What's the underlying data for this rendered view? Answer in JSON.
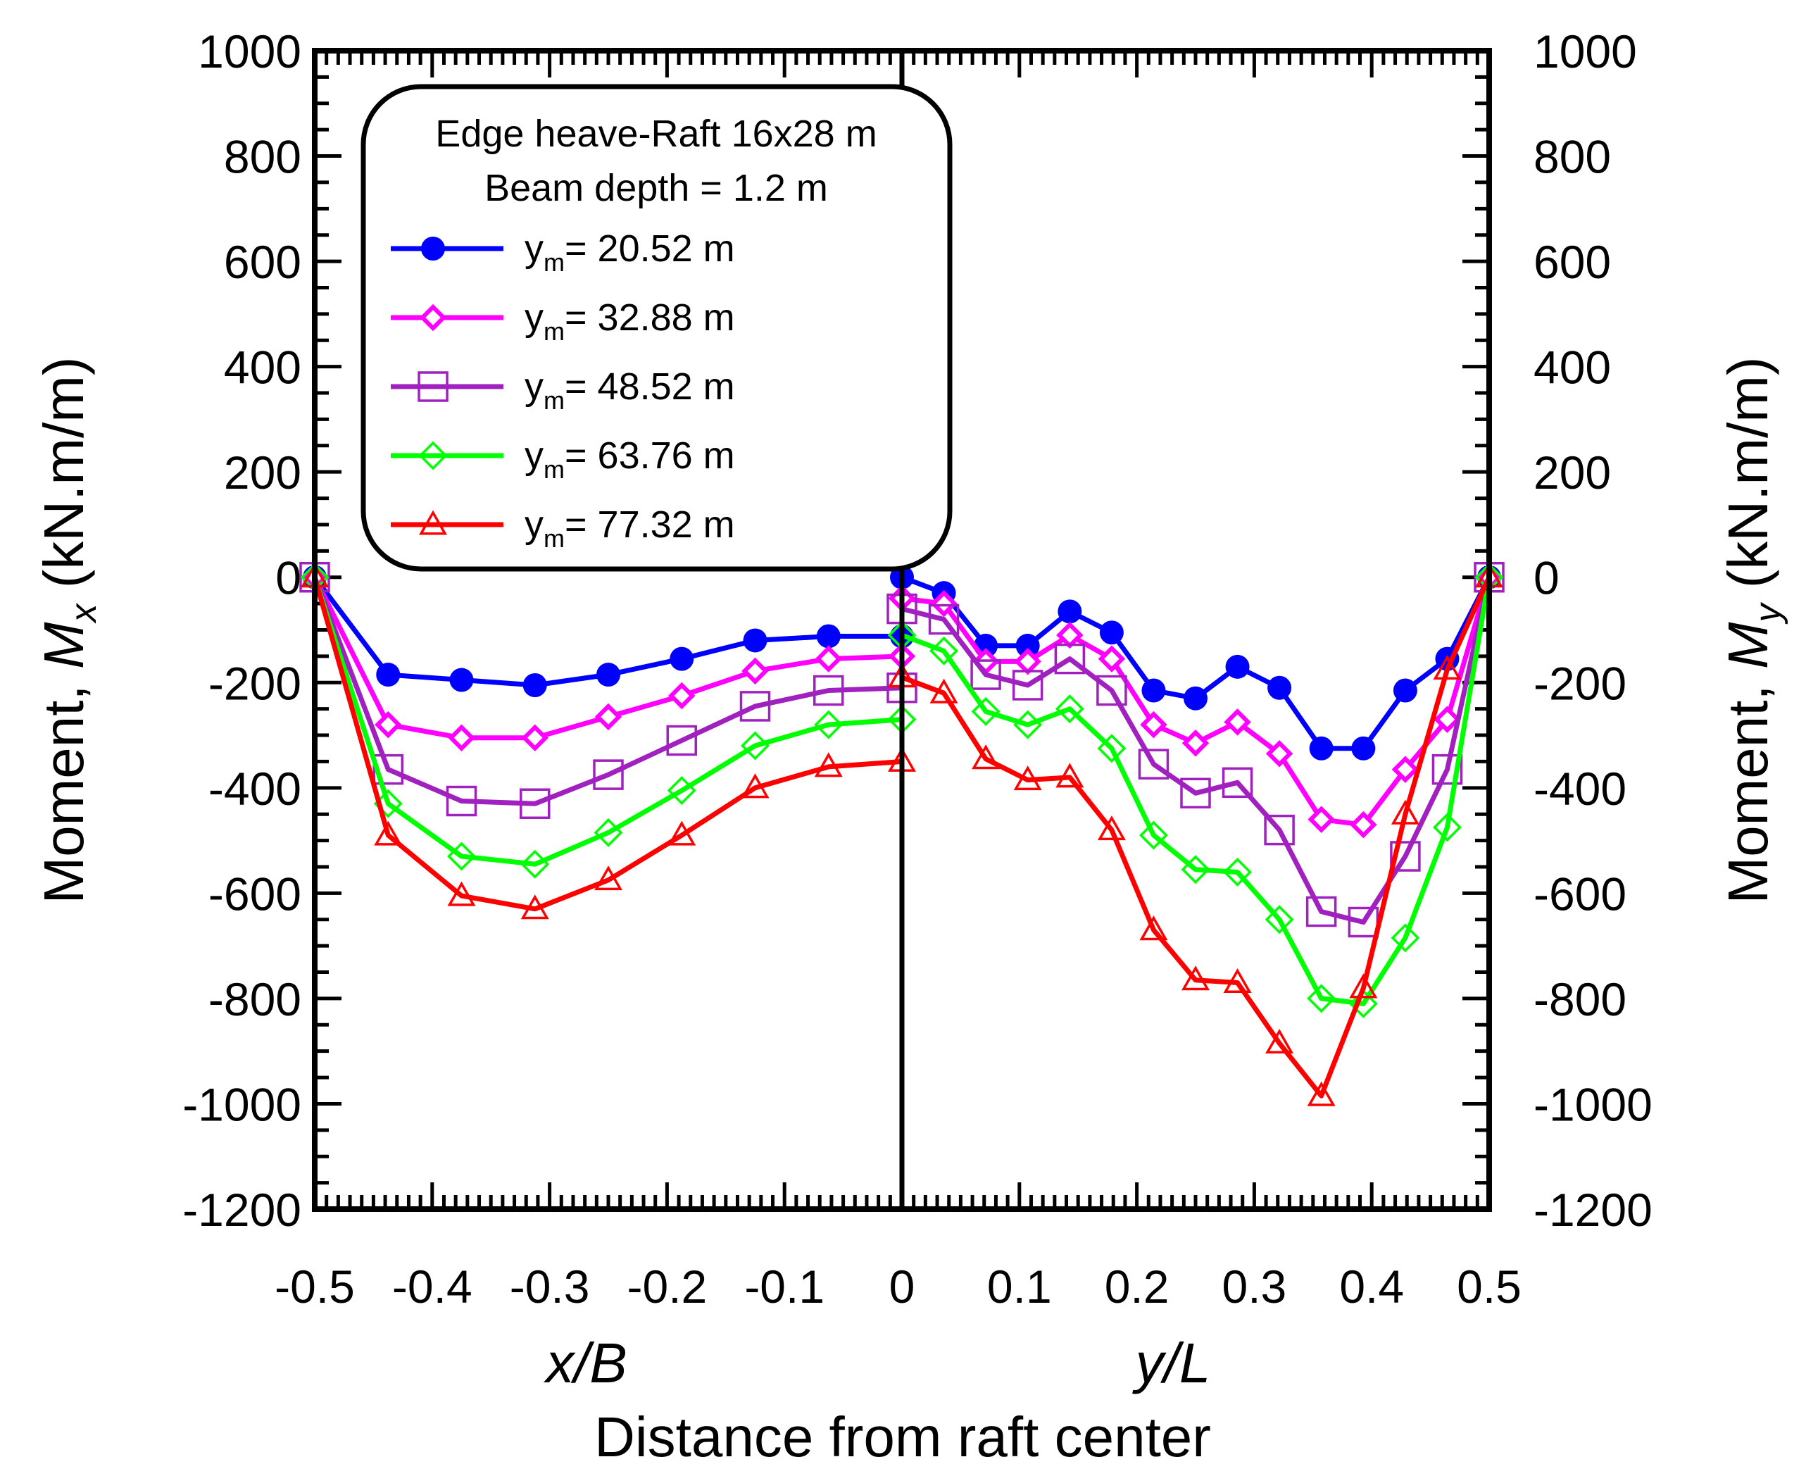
{
  "chart_data": {
    "type": "line",
    "title_lines": [
      "Edge heave-Raft 16x28 m",
      "Beam depth = 1.2 m"
    ],
    "xlabel": "Distance from raft center",
    "xlabel_left_sub": "x/B",
    "xlabel_right_sub": "y/L",
    "ylabel_left": {
      "prefix": "Moment, ",
      "symbol": "M",
      "subscript": "x",
      "unit": " (kN.m/m)"
    },
    "ylabel_right": {
      "prefix": "Moment, ",
      "symbol": "M",
      "subscript": "y",
      "unit": " (kN.m/m)"
    },
    "ylim": [
      -1200,
      1000
    ],
    "yticks": [
      1000,
      800,
      600,
      400,
      200,
      0,
      -200,
      -400,
      -600,
      -800,
      -1000,
      -1200
    ],
    "xticks_left": [
      -0.5,
      -0.4,
      -0.3,
      -0.2,
      -0.1,
      0
    ],
    "xticks_right": [
      0.1,
      0.2,
      0.3,
      0.4,
      0.5
    ],
    "xtick_labels_left": [
      "-0.5",
      "-0.4",
      "-0.3",
      "-0.2",
      "-0.1",
      "0"
    ],
    "xtick_labels_right": [
      "0.1",
      "0.2",
      "0.3",
      "0.4",
      "0.5"
    ],
    "grid": false,
    "legend_position": "top-left",
    "divider_at": 0,
    "series": [
      {
        "name": "y<sub>m</sub>= 20.52 m",
        "label_main": "y",
        "label_sub": "m",
        "label_value": "= 20.52 m",
        "color": "#0000ff",
        "marker": "filled-circle",
        "left_x": [
          -0.5,
          -0.4375,
          -0.375,
          -0.3125,
          -0.25,
          -0.1875,
          -0.125,
          -0.0625,
          0
        ],
        "left_y": [
          0,
          -185,
          -195,
          -205,
          -185,
          -155,
          -120,
          -112,
          -112
        ],
        "right_x": [
          0,
          0.0357,
          0.0714,
          0.1071,
          0.1429,
          0.1786,
          0.2143,
          0.25,
          0.2857,
          0.3214,
          0.3571,
          0.3929,
          0.4286,
          0.4643,
          0.5
        ],
        "right_y": [
          0,
          -30,
          -130,
          -130,
          -65,
          -105,
          -215,
          -230,
          -170,
          -210,
          -325,
          -325,
          -215,
          -155,
          0
        ]
      },
      {
        "name": "y<sub>m</sub>= 32.88 m",
        "label_main": "y",
        "label_sub": "m",
        "label_value": "= 32.88 m",
        "color": "#ff00ff",
        "marker": "diamond",
        "left_x": [
          -0.5,
          -0.4375,
          -0.375,
          -0.3125,
          -0.25,
          -0.1875,
          -0.125,
          -0.0625,
          0
        ],
        "left_y": [
          0,
          -280,
          -305,
          -305,
          -265,
          -225,
          -178,
          -155,
          -150
        ],
        "right_x": [
          0,
          0.0357,
          0.0714,
          0.1071,
          0.1429,
          0.1786,
          0.2143,
          0.25,
          0.2857,
          0.3214,
          0.3571,
          0.3929,
          0.4286,
          0.4643,
          0.5
        ],
        "right_y": [
          -40,
          -50,
          -160,
          -160,
          -110,
          -155,
          -280,
          -315,
          -275,
          -335,
          -460,
          -470,
          -365,
          -270,
          0
        ]
      },
      {
        "name": "y<sub>m</sub>= 48.52 m",
        "label_main": "y",
        "label_sub": "m",
        "label_value": "= 48.52 m",
        "color": "#a020c0",
        "marker": "open-square",
        "left_x": [
          -0.5,
          -0.4375,
          -0.375,
          -0.3125,
          -0.25,
          -0.1875,
          -0.125,
          -0.0625,
          0
        ],
        "left_y": [
          0,
          -365,
          -425,
          -430,
          -375,
          -310,
          -245,
          -215,
          -210
        ],
        "right_x": [
          0,
          0.0357,
          0.0714,
          0.1071,
          0.1429,
          0.1786,
          0.2143,
          0.25,
          0.2857,
          0.3214,
          0.3571,
          0.3929,
          0.4286,
          0.4643,
          0.5
        ],
        "right_y": [
          -60,
          -80,
          -185,
          -205,
          -155,
          -215,
          -355,
          -410,
          -390,
          -480,
          -635,
          -655,
          -530,
          -365,
          0
        ]
      },
      {
        "name": "y<sub>m</sub>= 63.76 m",
        "label_main": "y",
        "label_sub": "m",
        "label_value": "= 63.76 m",
        "color": "#00ff00",
        "marker": "open-diamond",
        "left_x": [
          -0.5,
          -0.4375,
          -0.375,
          -0.3125,
          -0.25,
          -0.1875,
          -0.125,
          -0.0625,
          0
        ],
        "left_y": [
          0,
          -430,
          -530,
          -545,
          -485,
          -405,
          -320,
          -280,
          -270
        ],
        "right_x": [
          0,
          0.0357,
          0.0714,
          0.1071,
          0.1429,
          0.1786,
          0.2143,
          0.25,
          0.2857,
          0.3214,
          0.3571,
          0.3929,
          0.4286,
          0.4643,
          0.5
        ],
        "right_y": [
          -110,
          -140,
          -255,
          -280,
          -250,
          -325,
          -490,
          -555,
          -560,
          -650,
          -800,
          -810,
          -685,
          -475,
          0
        ]
      },
      {
        "name": "y<sub>m</sub>= 77.32 m",
        "label_main": "y",
        "label_sub": "m",
        "label_value": "= 77.32 m",
        "color": "#ff0000",
        "marker": "open-triangle",
        "left_x": [
          -0.5,
          -0.4375,
          -0.375,
          -0.3125,
          -0.25,
          -0.1875,
          -0.125,
          -0.0625,
          0
        ],
        "left_y": [
          0,
          -490,
          -605,
          -630,
          -575,
          -490,
          -400,
          -360,
          -350
        ],
        "right_x": [
          0,
          0.0357,
          0.0714,
          0.1071,
          0.1429,
          0.1786,
          0.2143,
          0.25,
          0.2857,
          0.3214,
          0.3571,
          0.3929,
          0.4286,
          0.4643,
          0.5
        ],
        "right_y": [
          -190,
          -220,
          -345,
          -385,
          -380,
          -480,
          -670,
          -765,
          -770,
          -885,
          -985,
          -780,
          -450,
          -175,
          0
        ]
      }
    ]
  }
}
